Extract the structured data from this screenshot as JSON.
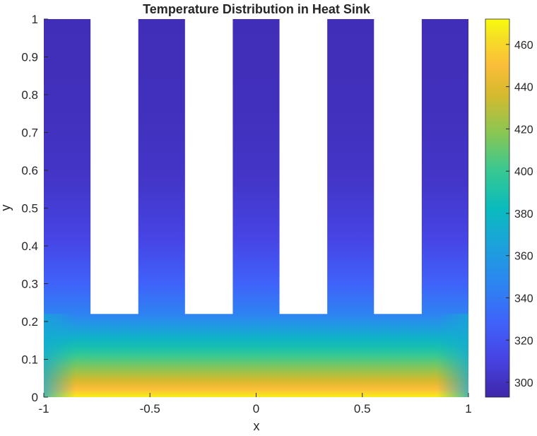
{
  "chart_data": {
    "type": "heatmap",
    "title": "Temperature Distribution in Heat Sink",
    "xlabel": "x",
    "ylabel": "y",
    "xlim": [
      -1,
      1
    ],
    "ylim": [
      0,
      1
    ],
    "xticks": [
      -1,
      -0.5,
      0,
      0.5,
      1
    ],
    "xtick_labels": [
      "-1",
      "-0.5",
      "0",
      "0.5",
      "1"
    ],
    "yticks": [
      0,
      0.1,
      0.2,
      0.3,
      0.4,
      0.5,
      0.6,
      0.7,
      0.8,
      0.9,
      1
    ],
    "ytick_labels": [
      "0",
      "0.1",
      "0.2",
      "0.3",
      "0.4",
      "0.5",
      "0.6",
      "0.7",
      "0.8",
      "0.9",
      "1"
    ],
    "colormap": "parula",
    "color_range": [
      293,
      472
    ],
    "colorbar_ticks": [
      300,
      320,
      340,
      360,
      380,
      400,
      420,
      440,
      460
    ],
    "colorbar_tick_labels": [
      "300",
      "320",
      "340",
      "360",
      "380",
      "400",
      "420",
      "440",
      "460"
    ],
    "base_top_y": 0.22,
    "base_temperature_bottom": 468,
    "base_temperature_top": 345,
    "fin_tip_temperature": 298,
    "fins": [
      {
        "x": [
          -1,
          -0.78
        ]
      },
      {
        "x": [
          -0.555,
          -0.335
        ]
      },
      {
        "x": [
          -0.11,
          0.11
        ]
      },
      {
        "x": [
          0.335,
          0.555
        ]
      },
      {
        "x": [
          0.78,
          1
        ]
      }
    ],
    "grid": false,
    "legend": "none",
    "colorbar_position": "right"
  }
}
